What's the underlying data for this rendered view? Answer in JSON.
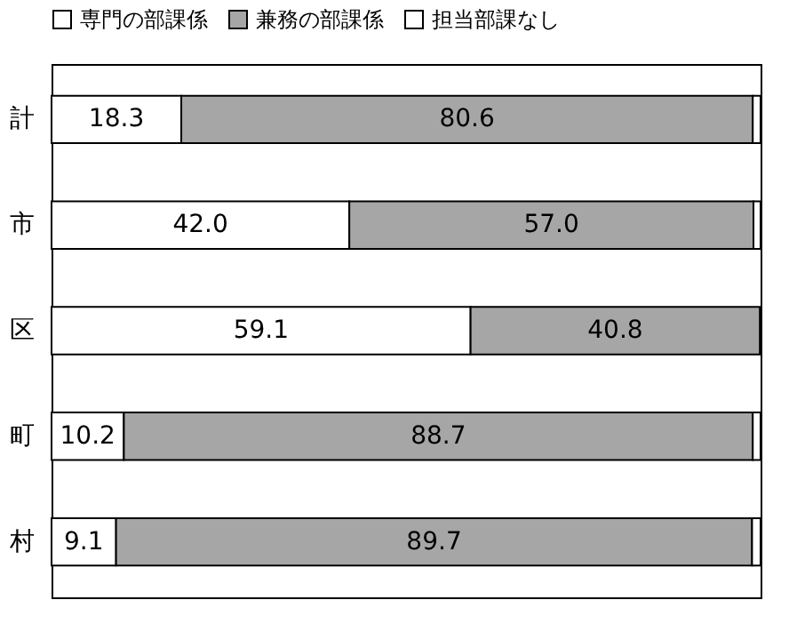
{
  "chart_data": {
    "type": "bar",
    "orientation": "horizontal",
    "stacked": true,
    "tick_labels": "y",
    "legend": "top",
    "categories": [
      "計",
      "市",
      "区",
      "町",
      "村"
    ],
    "series": [
      {
        "name": "専門の部課係",
        "color": "#ffffff",
        "values": [
          18.3,
          42.0,
          59.1,
          10.2,
          9.1
        ],
        "value_labels": [
          "18.3",
          "42.0",
          "59.1",
          "10.2",
          "9.1"
        ]
      },
      {
        "name": "兼務の部課係",
        "color": "#a6a6a6",
        "values": [
          80.6,
          57.0,
          40.8,
          88.7,
          89.7
        ],
        "value_labels": [
          "80.6",
          "57.0",
          "40.8",
          "88.7",
          "89.7"
        ]
      },
      {
        "name": "担当部課なし",
        "color": "#ffffff",
        "values": [
          1.1,
          1.0,
          null,
          1.1,
          1.2
        ],
        "value_labels": [
          null,
          null,
          null,
          null,
          null
        ]
      }
    ]
  }
}
